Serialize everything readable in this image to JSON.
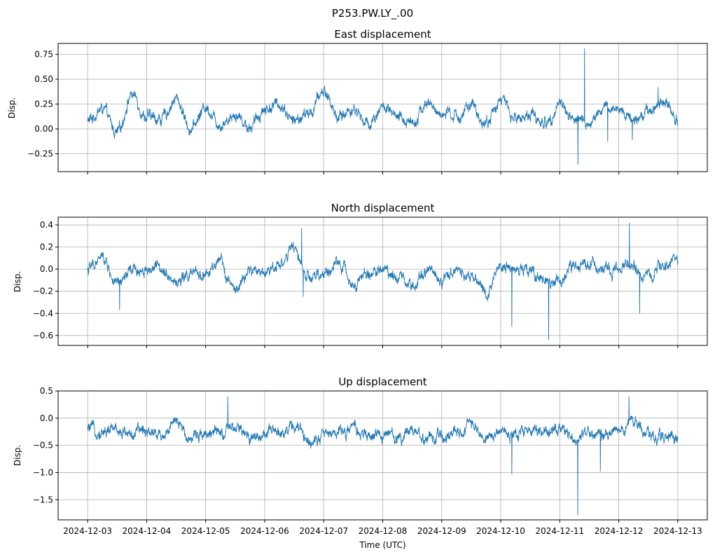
{
  "figure": {
    "title": "P253.PW.LY_.00",
    "xlabel": "Time (UTC)"
  },
  "chart_data": [
    {
      "type": "line",
      "title": "East displacement",
      "ylabel": "Disp.",
      "x_range": [
        "2024-12-03",
        "2024-12-13"
      ],
      "ylim": [
        -0.43,
        0.86
      ],
      "yticks": [
        -0.25,
        0.0,
        0.25,
        0.5,
        0.75
      ],
      "ytick_labels": [
        "−0.25",
        "0.00",
        "0.25",
        "0.50",
        "0.75"
      ],
      "grid": true,
      "line_color": "#1f77b4",
      "x": [
        "2024-12-03T00:00",
        "2024-12-03T06:00",
        "2024-12-03T12:00",
        "2024-12-03T18:00",
        "2024-12-04T00:00",
        "2024-12-04T06:00",
        "2024-12-04T12:00",
        "2024-12-04T18:00",
        "2024-12-05T00:00",
        "2024-12-05T06:00",
        "2024-12-05T12:00",
        "2024-12-05T18:00",
        "2024-12-06T00:00",
        "2024-12-06T06:00",
        "2024-12-06T12:00",
        "2024-12-06T18:00",
        "2024-12-07T00:00",
        "2024-12-07T06:00",
        "2024-12-07T12:00",
        "2024-12-07T18:00",
        "2024-12-08T00:00",
        "2024-12-08T06:00",
        "2024-12-08T12:00",
        "2024-12-08T18:00",
        "2024-12-09T00:00",
        "2024-12-09T06:00",
        "2024-12-09T12:00",
        "2024-12-09T18:00",
        "2024-12-10T00:00",
        "2024-12-10T06:00",
        "2024-12-10T12:00",
        "2024-12-10T18:00",
        "2024-12-11T00:00",
        "2024-12-11T06:00",
        "2024-12-11T12:00",
        "2024-12-11T18:00",
        "2024-12-12T00:00",
        "2024-12-12T06:00",
        "2024-12-12T12:00",
        "2024-12-12T18:00",
        "2024-12-13T00:00"
      ],
      "values": [
        0.08,
        0.2,
        -0.05,
        0.35,
        0.12,
        0.1,
        0.3,
        0.0,
        0.22,
        0.05,
        0.15,
        0.02,
        0.2,
        0.25,
        0.08,
        0.15,
        0.38,
        0.12,
        0.2,
        0.05,
        0.22,
        0.1,
        0.08,
        0.25,
        0.15,
        0.12,
        0.22,
        0.05,
        0.3,
        0.1,
        0.15,
        0.05,
        0.25,
        0.1,
        0.05,
        0.2,
        0.2,
        0.1,
        0.18,
        0.3,
        0.1
      ],
      "spikes": [
        {
          "x": "2024-12-11T10:05",
          "y": 0.81
        },
        {
          "x": "2024-12-11T07:25",
          "y": -0.36
        },
        {
          "x": "2024-12-11T19:30",
          "y": -0.13
        },
        {
          "x": "2024-12-12T05:30",
          "y": -0.11
        },
        {
          "x": "2024-12-12T16:00",
          "y": 0.42
        }
      ]
    },
    {
      "type": "line",
      "title": "North displacement",
      "ylabel": "Disp.",
      "x_range": [
        "2024-12-03",
        "2024-12-13"
      ],
      "ylim": [
        -0.69,
        0.47
      ],
      "yticks": [
        -0.6,
        -0.4,
        -0.2,
        0.0,
        0.2,
        0.4
      ],
      "ytick_labels": [
        "−0.6",
        "−0.4",
        "−0.2",
        "0.0",
        "0.2",
        "0.4"
      ],
      "grid": true,
      "line_color": "#1f77b4",
      "x": [
        "2024-12-03T00:00",
        "2024-12-03T06:00",
        "2024-12-03T12:00",
        "2024-12-03T18:00",
        "2024-12-04T00:00",
        "2024-12-04T06:00",
        "2024-12-04T12:00",
        "2024-12-04T18:00",
        "2024-12-05T00:00",
        "2024-12-05T06:00",
        "2024-12-05T12:00",
        "2024-12-05T18:00",
        "2024-12-06T00:00",
        "2024-12-06T06:00",
        "2024-12-06T12:00",
        "2024-12-06T18:00",
        "2024-12-07T00:00",
        "2024-12-07T06:00",
        "2024-12-07T12:00",
        "2024-12-07T18:00",
        "2024-12-08T00:00",
        "2024-12-08T06:00",
        "2024-12-08T12:00",
        "2024-12-08T18:00",
        "2024-12-09T00:00",
        "2024-12-09T06:00",
        "2024-12-09T12:00",
        "2024-12-09T18:00",
        "2024-12-10T00:00",
        "2024-12-10T06:00",
        "2024-12-10T12:00",
        "2024-12-10T18:00",
        "2024-12-11T00:00",
        "2024-12-11T06:00",
        "2024-12-11T12:00",
        "2024-12-11T18:00",
        "2024-12-12T00:00",
        "2024-12-12T06:00",
        "2024-12-12T12:00",
        "2024-12-12T18:00",
        "2024-12-13T00:00"
      ],
      "values": [
        0.0,
        0.1,
        -0.15,
        -0.02,
        0.0,
        0.02,
        -0.12,
        -0.05,
        -0.05,
        0.05,
        -0.2,
        -0.02,
        -0.02,
        0.05,
        0.18,
        -0.1,
        -0.05,
        0.05,
        -0.12,
        -0.05,
        0.0,
        -0.05,
        -0.15,
        0.02,
        -0.1,
        0.0,
        -0.05,
        -0.2,
        0.05,
        -0.02,
        0.0,
        -0.15,
        -0.1,
        0.02,
        0.05,
        0.0,
        0.0,
        0.02,
        -0.1,
        0.05,
        0.05
      ],
      "spikes": [
        {
          "x": "2024-12-03T13:00",
          "y": -0.37
        },
        {
          "x": "2024-12-06T15:00",
          "y": 0.37
        },
        {
          "x": "2024-12-06T15:40",
          "y": -0.25
        },
        {
          "x": "2024-12-10T04:30",
          "y": -0.52
        },
        {
          "x": "2024-12-10T19:30",
          "y": -0.64
        },
        {
          "x": "2024-12-12T04:20",
          "y": 0.42
        },
        {
          "x": "2024-12-12T08:30",
          "y": -0.4
        }
      ]
    },
    {
      "type": "line",
      "title": "Up displacement",
      "ylabel": "Disp.",
      "x_range": [
        "2024-12-03",
        "2024-12-13"
      ],
      "ylim": [
        -1.87,
        0.5
      ],
      "yticks": [
        -1.5,
        -1.0,
        -0.5,
        0.0,
        0.5
      ],
      "ytick_labels": [
        "−1.5",
        "−1.0",
        "−0.5",
        "0.0",
        "0.5"
      ],
      "grid": true,
      "line_color": "#1f77b4",
      "x": [
        "2024-12-03T00:00",
        "2024-12-03T06:00",
        "2024-12-03T12:00",
        "2024-12-03T18:00",
        "2024-12-04T00:00",
        "2024-12-04T06:00",
        "2024-12-04T12:00",
        "2024-12-04T18:00",
        "2024-12-05T00:00",
        "2024-12-05T06:00",
        "2024-12-05T12:00",
        "2024-12-05T18:00",
        "2024-12-06T00:00",
        "2024-12-06T06:00",
        "2024-12-06T12:00",
        "2024-12-06T18:00",
        "2024-12-07T00:00",
        "2024-12-07T06:00",
        "2024-12-07T12:00",
        "2024-12-07T18:00",
        "2024-12-08T00:00",
        "2024-12-08T06:00",
        "2024-12-08T12:00",
        "2024-12-08T18:00",
        "2024-12-09T00:00",
        "2024-12-09T06:00",
        "2024-12-09T12:00",
        "2024-12-09T18:00",
        "2024-12-10T00:00",
        "2024-12-10T06:00",
        "2024-12-10T12:00",
        "2024-12-10T18:00",
        "2024-12-11T00:00",
        "2024-12-11T06:00",
        "2024-12-11T12:00",
        "2024-12-11T18:00",
        "2024-12-12T00:00",
        "2024-12-12T06:00",
        "2024-12-12T12:00",
        "2024-12-12T18:00",
        "2024-12-13T00:00"
      ],
      "values": [
        -0.2,
        -0.25,
        -0.2,
        -0.3,
        -0.2,
        -0.3,
        -0.1,
        -0.35,
        -0.25,
        -0.3,
        -0.2,
        -0.35,
        -0.3,
        -0.25,
        -0.15,
        -0.4,
        -0.3,
        -0.25,
        -0.2,
        -0.35,
        -0.3,
        -0.35,
        -0.2,
        -0.4,
        -0.35,
        -0.3,
        -0.1,
        -0.35,
        -0.25,
        -0.3,
        -0.2,
        -0.3,
        -0.2,
        -0.35,
        -0.25,
        -0.3,
        -0.25,
        -0.05,
        -0.35,
        -0.3,
        -0.35
      ],
      "spikes": [
        {
          "x": "2024-12-05T09:00",
          "y": 0.4
        },
        {
          "x": "2024-12-10T04:30",
          "y": -1.03
        },
        {
          "x": "2024-12-11T07:20",
          "y": -1.78
        },
        {
          "x": "2024-12-11T16:30",
          "y": -0.98
        },
        {
          "x": "2024-12-12T04:10",
          "y": 0.4
        }
      ]
    }
  ],
  "x_ticks": [
    "2024-12-03",
    "2024-12-04",
    "2024-12-05",
    "2024-12-06",
    "2024-12-07",
    "2024-12-08",
    "2024-12-09",
    "2024-12-10",
    "2024-12-11",
    "2024-12-12",
    "2024-12-13"
  ]
}
